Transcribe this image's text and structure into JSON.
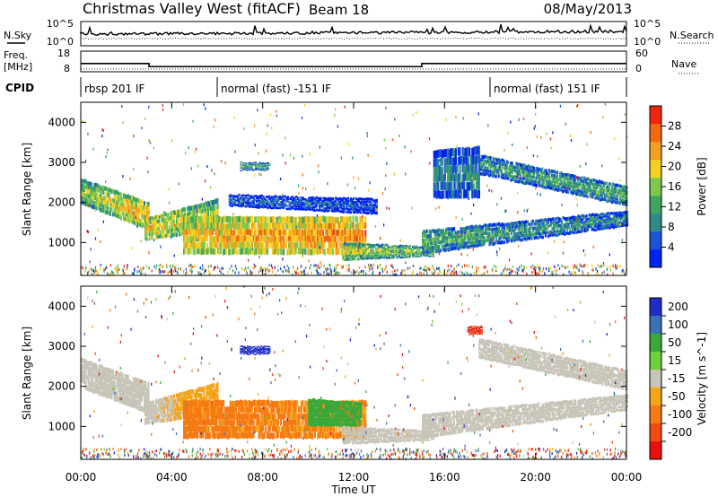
{
  "header": {
    "station_title": "Christmas Valley West (fitACF)",
    "beam_label": "Beam 18",
    "date": "08/May/2013"
  },
  "side_labels": {
    "nsky": "N.Sky",
    "freq": "Freq.",
    "freq_unit": "[MHz]",
    "cpid": "CPID",
    "nsearch": "N.Search",
    "nave": "Nave"
  },
  "noise_panel": {
    "left_ticks": [
      "10^5",
      "10^0"
    ],
    "right_ticks": [
      "10^5",
      "10^0"
    ]
  },
  "freq_panel": {
    "left_ticks": [
      "18",
      "8"
    ],
    "right_ticks": [
      "60",
      "0"
    ],
    "freq_steps": [
      {
        "start": 0.0,
        "end": 3.0,
        "value": 12.0
      },
      {
        "start": 3.0,
        "end": 15.0,
        "value": 10.5
      },
      {
        "start": 15.0,
        "end": 24.0,
        "value": 12.0
      }
    ],
    "nave_value": 8
  },
  "cpid_segments": [
    {
      "start": 0.0,
      "end": 6.0,
      "label": "rbsp 201 IF"
    },
    {
      "start": 6.0,
      "end": 18.0,
      "label": "normal (fast) -151 IF"
    },
    {
      "start": 18.0,
      "end": 24.0,
      "label": "normal (fast) 151 IF"
    }
  ],
  "time_axis": {
    "label": "Time UT",
    "ticks": [
      "00:00",
      "04:00",
      "08:00",
      "12:00",
      "16:00",
      "20:00",
      "00:00"
    ],
    "range_hours": [
      0,
      24
    ]
  },
  "range_axis": {
    "label": "Slant Range [km]",
    "ticks": [
      1000,
      2000,
      3000,
      4000
    ],
    "range_km": [
      180,
      4500
    ]
  },
  "colors": {
    "power": [
      "#0022ee",
      "#1a53d6",
      "#2f8a88",
      "#3fa660",
      "#7ec850",
      "#f4d020",
      "#f5a020",
      "#f26a10",
      "#ee2810"
    ],
    "velocity": [
      "#1e2cc8",
      "#3a72b8",
      "#3aa83a",
      "#6ed03a",
      "#c8c4b8",
      "#f5a51a",
      "#f57a14",
      "#ef4b10",
      "#e81010"
    ]
  },
  "chart_data": [
    {
      "type": "heatmap",
      "quantity": "power",
      "ylabel": "Slant Range [km]",
      "xlabel": "Time UT",
      "xlim": [
        0,
        24
      ],
      "ylim": [
        180,
        4500
      ],
      "colorbar": {
        "label": "Power [dB]",
        "ticks": [
          4,
          8,
          12,
          16,
          20,
          24,
          28
        ],
        "range": [
          0,
          32
        ]
      },
      "regions": [
        {
          "t0": 0.0,
          "t1": 3.0,
          "r0a": 1950,
          "r0b": 1300,
          "r1a": 2600,
          "r1b": 2000,
          "v0": 16,
          "v1": 24
        },
        {
          "t0": 2.8,
          "t1": 6.0,
          "r0a": 1050,
          "r0b": 1300,
          "r1a": 1600,
          "r1b": 2100,
          "v0": 22,
          "v1": 18
        },
        {
          "t0": 4.5,
          "t1": 12.5,
          "r0a": 700,
          "r0b": 700,
          "r1a": 1650,
          "r1b": 1650,
          "v0": 22,
          "v1": 26
        },
        {
          "t0": 11.5,
          "t1": 15.5,
          "r0a": 550,
          "r0b": 650,
          "r1a": 1000,
          "r1b": 900,
          "v0": 18,
          "v1": 16
        },
        {
          "t0": 6.5,
          "t1": 13.0,
          "r0a": 1900,
          "r0b": 1700,
          "r1a": 2200,
          "r1b": 2100,
          "v0": 8,
          "v1": 6
        },
        {
          "t0": 7.0,
          "t1": 8.2,
          "r0a": 2800,
          "r0b": 2800,
          "r1a": 3000,
          "r1b": 3000,
          "v0": 14,
          "v1": 12
        },
        {
          "t0": 15.0,
          "t1": 24.0,
          "r0a": 700,
          "r0b": 1400,
          "r1a": 1300,
          "r1b": 1800,
          "v0": 14,
          "v1": 10
        },
        {
          "t0": 17.5,
          "t1": 24.0,
          "r0a": 2700,
          "r0b": 1900,
          "r1a": 3200,
          "r1b": 2400,
          "v0": 12,
          "v1": 14
        },
        {
          "t0": 15.5,
          "t1": 17.5,
          "r0a": 2100,
          "r0b": 2100,
          "r1a": 3300,
          "r1b": 3400,
          "v0": 10,
          "v1": 10
        }
      ]
    },
    {
      "type": "heatmap",
      "quantity": "velocity",
      "ylabel": "Slant Range [km]",
      "xlabel": "Time UT",
      "xlim": [
        0,
        24
      ],
      "ylim": [
        180,
        4500
      ],
      "colorbar": {
        "label": "Velocity [m s^-1]",
        "ticks": [
          200,
          100,
          50,
          15,
          -15,
          -50,
          -100,
          -200
        ]
      },
      "regions": [
        {
          "t0": 0.0,
          "t1": 3.0,
          "r0a": 1950,
          "r0b": 1300,
          "r1a": 2700,
          "r1b": 2100,
          "v0": 0,
          "v1": 0
        },
        {
          "t0": 2.8,
          "t1": 6.0,
          "r0a": 1050,
          "r0b": 1300,
          "r1a": 1600,
          "r1b": 2100,
          "v0": 0,
          "v1": -40
        },
        {
          "t0": 4.5,
          "t1": 12.5,
          "r0a": 700,
          "r0b": 700,
          "r1a": 1650,
          "r1b": 1650,
          "v0": -60,
          "v1": -50
        },
        {
          "t0": 10.0,
          "t1": 12.3,
          "r0a": 1000,
          "r0b": 1000,
          "r1a": 1700,
          "r1b": 1600,
          "v0": 40,
          "v1": 40
        },
        {
          "t0": 11.5,
          "t1": 15.5,
          "r0a": 550,
          "r0b": 650,
          "r1a": 1000,
          "r1b": 900,
          "v0": 0,
          "v1": 0
        },
        {
          "t0": 7.0,
          "t1": 8.3,
          "r0a": 2800,
          "r0b": 2800,
          "r1a": 3000,
          "r1b": 3000,
          "v0": 220,
          "v1": 220
        },
        {
          "t0": 15.0,
          "t1": 24.0,
          "r0a": 700,
          "r0b": 1400,
          "r1a": 1300,
          "r1b": 1800,
          "v0": 0,
          "v1": 0
        },
        {
          "t0": 17.5,
          "t1": 24.0,
          "r0a": 2700,
          "r0b": 1900,
          "r1a": 3200,
          "r1b": 2400,
          "v0": 0,
          "v1": 0
        },
        {
          "t0": 17.0,
          "t1": 17.6,
          "r0a": 3300,
          "r0b": 3300,
          "r1a": 3500,
          "r1b": 3500,
          "v0": -150,
          "v1": -150
        }
      ]
    }
  ]
}
